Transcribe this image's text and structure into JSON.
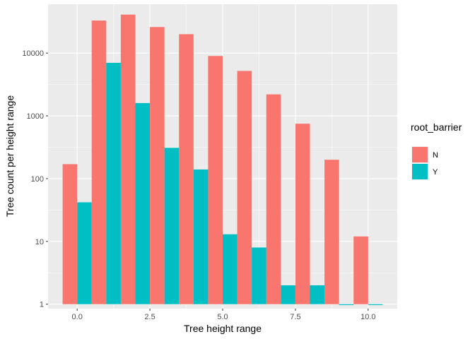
{
  "chart_data": {
    "type": "bar",
    "xlabel": "Tree height range",
    "ylabel": "Tree count per height range",
    "y_scale": "log10",
    "ylim": [
      0.85,
      60000
    ],
    "xlim": [
      -1,
      11
    ],
    "x_ticks": [
      0,
      2.5,
      5,
      7.5,
      10
    ],
    "x_tick_labels": [
      "0.0",
      "2.5",
      "5.0",
      "7.5",
      "10.0"
    ],
    "y_ticks": [
      1,
      10,
      100,
      1000,
      10000
    ],
    "y_tick_labels": [
      "1",
      "10",
      "100",
      "1000",
      "10000"
    ],
    "x": [
      0,
      1,
      2,
      3,
      4,
      5,
      6,
      7,
      8,
      9,
      10
    ],
    "bin_width": 1,
    "series": [
      {
        "name": "N",
        "color": "#F8766D",
        "values": [
          170,
          33000,
          41000,
          26000,
          20000,
          9000,
          5200,
          2200,
          750,
          200,
          12
        ]
      },
      {
        "name": "Y",
        "color": "#00BFC4",
        "values": [
          42,
          7000,
          1600,
          310,
          140,
          13,
          8,
          2,
          2,
          1,
          1
        ]
      }
    ],
    "legend": {
      "title": "root_barrier",
      "placement": "right"
    },
    "grid": true,
    "panel_background": "#EBEBEB"
  }
}
